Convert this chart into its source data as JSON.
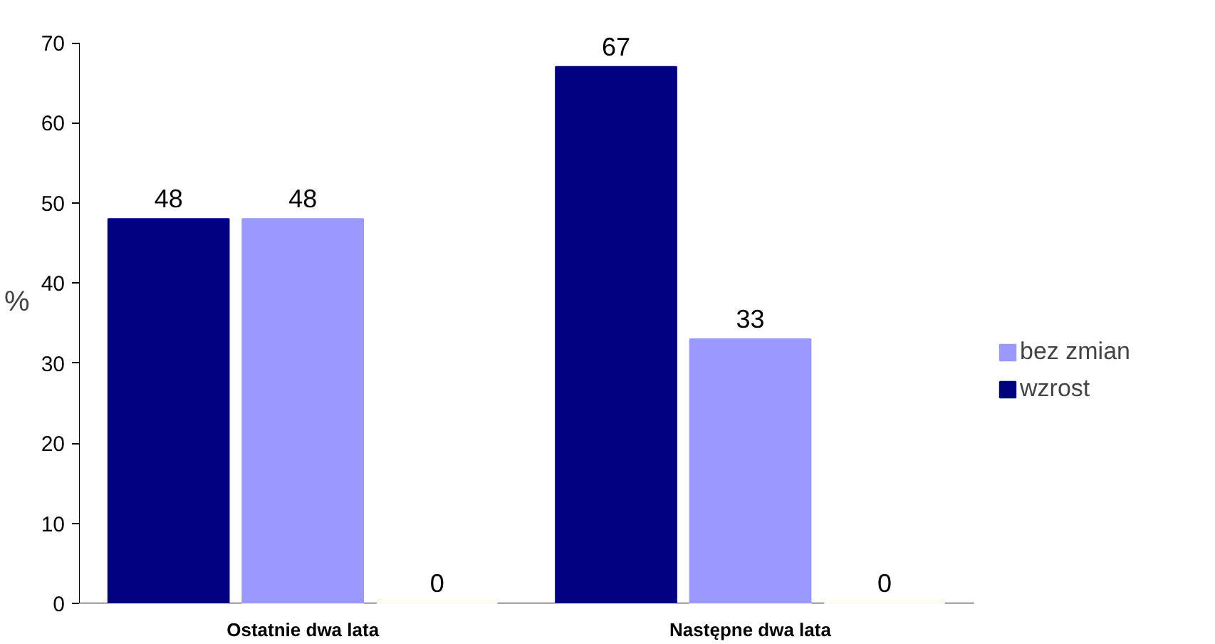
{
  "chart_data": {
    "type": "bar",
    "ylabel": "%",
    "categories": [
      "Ostatnie dwa lata",
      "Następne dwa lata"
    ],
    "series": [
      {
        "name": "wzrost",
        "color": "#000080",
        "values": [
          48,
          67
        ]
      },
      {
        "name": "bez zmian",
        "color": "#9999ff",
        "values": [
          48,
          33
        ]
      },
      {
        "color": "#ffffcc",
        "values": [
          0,
          0
        ]
      }
    ],
    "ylim": [
      0,
      70
    ],
    "yticks": [
      0,
      10,
      20,
      30,
      40,
      50,
      60,
      70
    ],
    "data_labels": true,
    "legend": "right",
    "grid": false
  }
}
